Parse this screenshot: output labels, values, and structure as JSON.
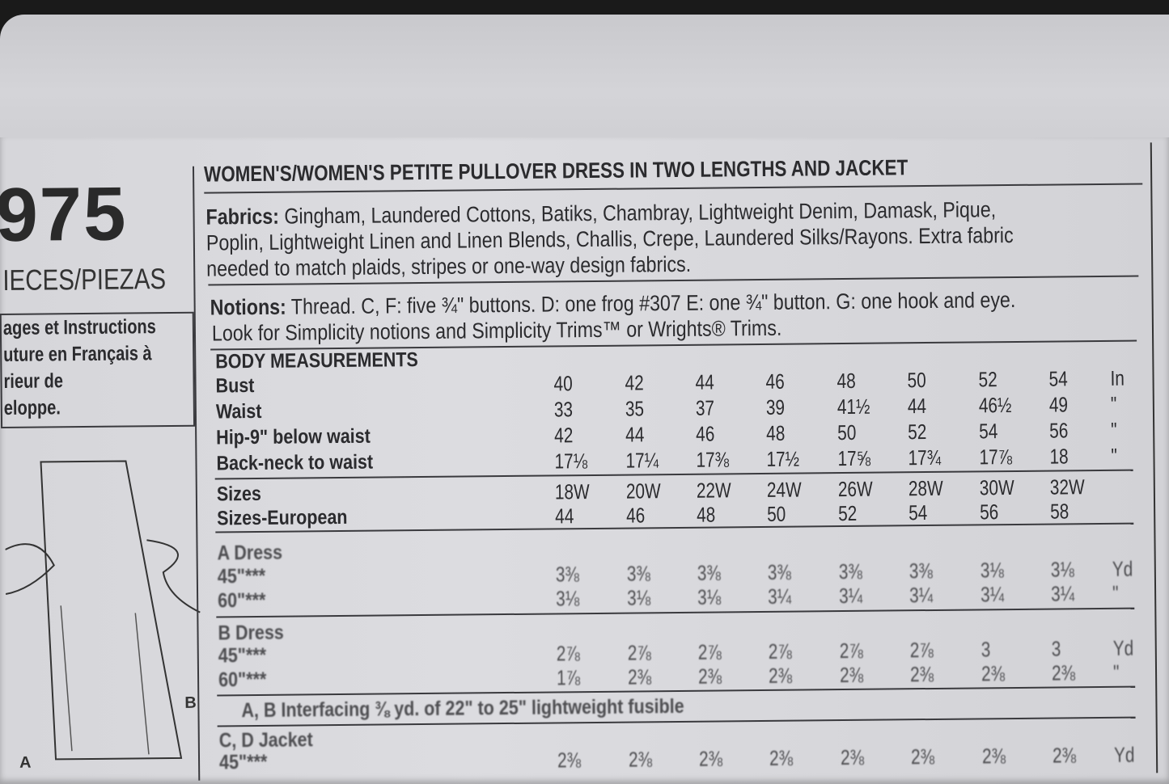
{
  "pattern_number": "975",
  "pieces_label": "IECES/PIEZAS",
  "french_note": [
    "ages et Instructions",
    "uture en Français à",
    "rieur de",
    "eloppe."
  ],
  "title": "WOMEN'S/WOMEN'S PETITE PULLOVER DRESS IN TWO LENGTHS AND JACKET",
  "fabrics": {
    "label": "Fabrics:",
    "lines": [
      " Gingham, Laundered Cottons, Batiks, Chambray, Lightweight Denim, Damask, Pique,",
      "Poplin, Lightweight Linen and Linen Blends, Challis, Crepe, Laundered Silks/Rayons. Extra fabric",
      "needed to match plaids, stripes or one-way design fabrics."
    ]
  },
  "notions": {
    "label": "Notions:",
    "lines": [
      " Thread. C, F: five ¾\" buttons. D: one frog #307 E: one ¾\" button. G: one hook and eye.",
      "Look for Simplicity notions and Simplicity Trims™ or Wrights® Trims."
    ]
  },
  "body_measurements": {
    "heading": "BODY MEASUREMENTS",
    "rows": [
      {
        "label": "Bust",
        "values": [
          "40",
          "42",
          "44",
          "46",
          "48",
          "50",
          "52",
          "54"
        ],
        "unit": "In"
      },
      {
        "label": "Waist",
        "values": [
          "33",
          "35",
          "37",
          "39",
          "41½",
          "44",
          "46½",
          "49"
        ],
        "unit": "\""
      },
      {
        "label": "Hip-9\" below waist",
        "values": [
          "42",
          "44",
          "46",
          "48",
          "50",
          "52",
          "54",
          "56"
        ],
        "unit": "\""
      },
      {
        "label": "Back-neck to waist",
        "values": [
          "17⅛",
          "17¼",
          "17⅜",
          "17½",
          "17⅝",
          "17¾",
          "17⅞",
          "18"
        ],
        "unit": "\""
      }
    ]
  },
  "sizes": {
    "rows": [
      {
        "label": "Sizes",
        "values": [
          "18W",
          "20W",
          "22W",
          "24W",
          "26W",
          "28W",
          "30W",
          "32W"
        ]
      },
      {
        "label": "Sizes-European",
        "values": [
          "44",
          "46",
          "48",
          "50",
          "52",
          "54",
          "56",
          "58"
        ]
      }
    ]
  },
  "a_dress": {
    "heading": "A Dress",
    "rows": [
      {
        "label": "45\"***",
        "values": [
          "3⅜",
          "3⅜",
          "3⅜",
          "3⅜",
          "3⅜",
          "3⅜",
          "3⅛",
          "3⅛"
        ],
        "unit": "Yd"
      },
      {
        "label": "60\"***",
        "values": [
          "3⅛",
          "3⅛",
          "3⅛",
          "3¼",
          "3¼",
          "3¼",
          "3¼",
          "3¼"
        ],
        "unit": "\""
      }
    ]
  },
  "b_dress": {
    "heading": "B Dress",
    "rows": [
      {
        "label": "45\"***",
        "values": [
          "2⅞",
          "2⅞",
          "2⅞",
          "2⅞",
          "2⅞",
          "2⅞",
          "3",
          "3"
        ],
        "unit": "Yd"
      },
      {
        "label": "60\"***",
        "values": [
          "1⅞",
          "2⅜",
          "2⅜",
          "2⅜",
          "2⅜",
          "2⅜",
          "2⅜",
          "2⅜"
        ],
        "unit": "\""
      }
    ]
  },
  "interfacing": "A, B Interfacing ⅜ yd. of 22\" to 25\" lightweight fusible",
  "jacket": {
    "heading": "C, D Jacket",
    "rows": [
      {
        "label": "45\"***",
        "values": [
          "2⅜",
          "2⅜",
          "2⅜",
          "2⅜",
          "2⅜",
          "2⅜",
          "2⅜",
          "2⅜"
        ],
        "unit": "Yd"
      }
    ]
  },
  "diagram_labels": {
    "a": "A",
    "b": "B"
  }
}
